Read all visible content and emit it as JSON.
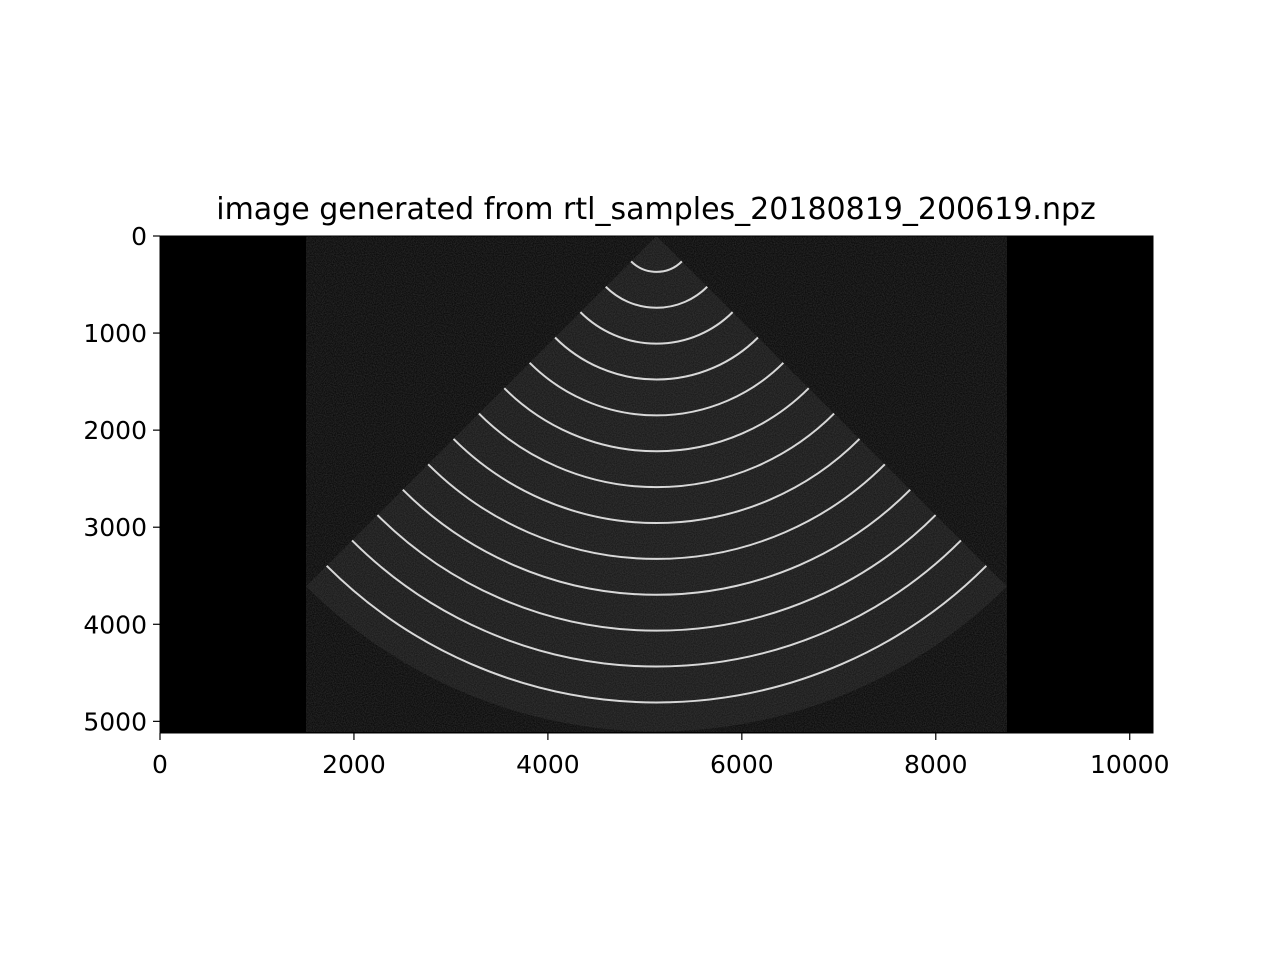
{
  "chart_data": {
    "type": "heatmap",
    "title": "image generated from rtl_samples_20180819_200619.npz",
    "xlabel": "",
    "ylabel": "",
    "xlim": [
      0,
      10240
    ],
    "ylim": [
      5120,
      0
    ],
    "x_ticks": [
      0,
      2000,
      4000,
      6000,
      8000,
      10000
    ],
    "x_tick_labels": [
      "0",
      "2000",
      "4000",
      "6000",
      "8000",
      "10000"
    ],
    "y_ticks": [
      0,
      1000,
      2000,
      3000,
      4000,
      5000
    ],
    "y_tick_labels": [
      "0",
      "1000",
      "2000",
      "3000",
      "4000",
      "5000"
    ],
    "grid": false,
    "colormap": "gray",
    "background_color": "#000000",
    "fan": {
      "apex": [
        5120,
        0
      ],
      "radius": 5110,
      "half_angle_deg": 45
    },
    "arc_radii": [
      370,
      740,
      1110,
      1480,
      1850,
      2220,
      2590,
      2960,
      3330,
      3700,
      4070,
      4440,
      4810
    ]
  }
}
